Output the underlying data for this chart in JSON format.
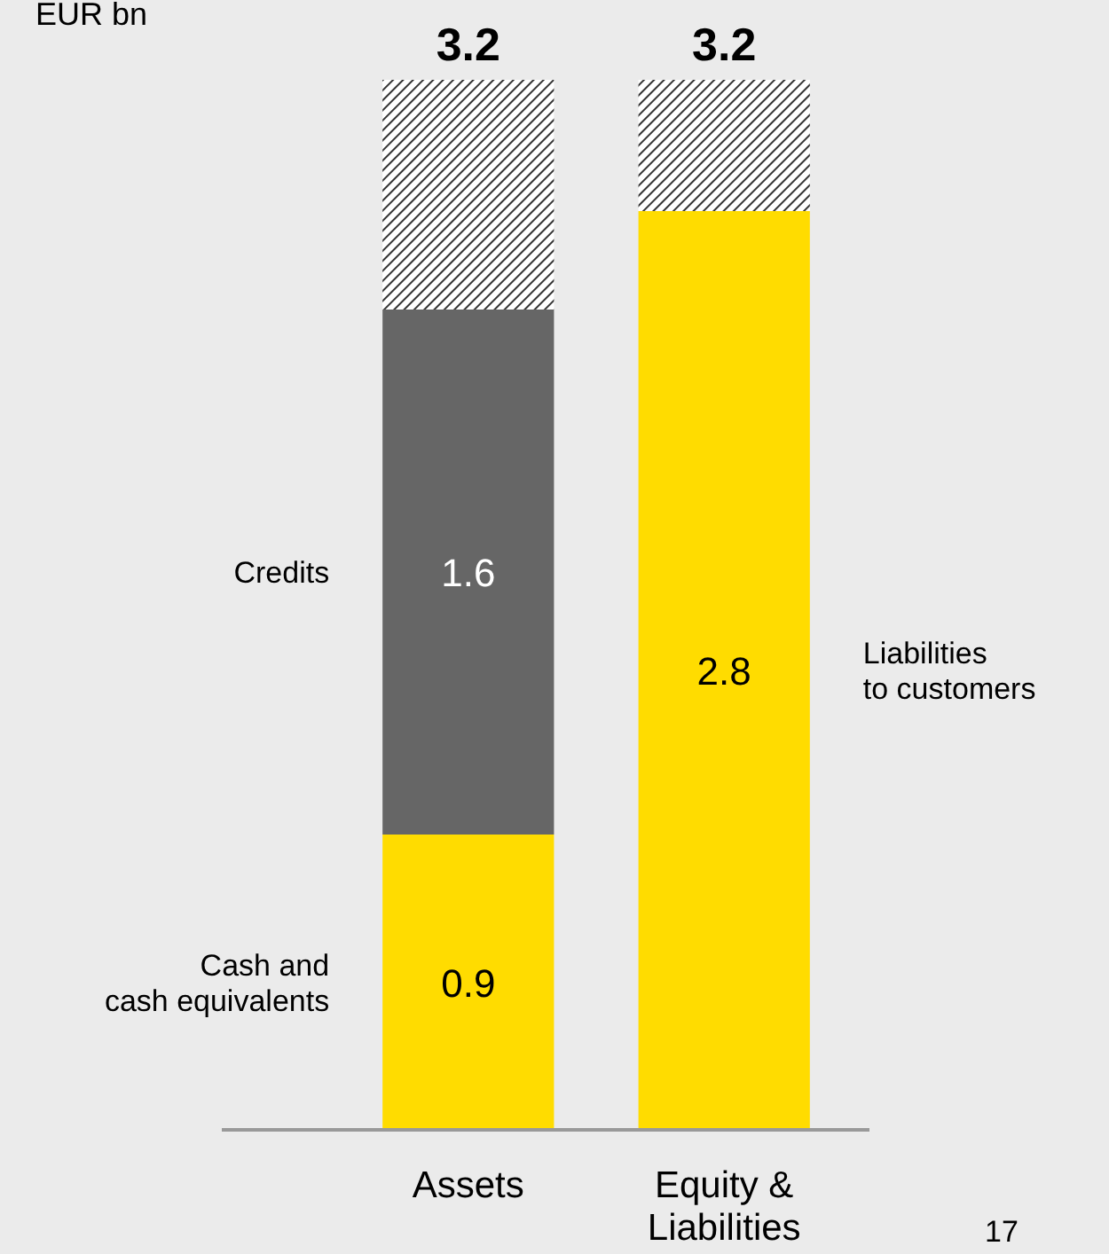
{
  "chart_data": {
    "type": "bar",
    "stacked": true,
    "ylabel": "EUR bn",
    "categories": [
      "Assets",
      "Equity &\nLiabilities"
    ],
    "series": [
      {
        "name": "Cash and\ncash equivalents",
        "color": "#ffdc00",
        "values": [
          0.9,
          null
        ],
        "value_labels": [
          "0.9",
          null
        ]
      },
      {
        "name": "Credits",
        "color": "#666666",
        "values": [
          1.6,
          null
        ],
        "value_labels": [
          "1.6",
          null
        ]
      },
      {
        "name": "Liabilities\nto customers",
        "color": "#ffdc00",
        "values": [
          null,
          2.8
        ],
        "value_labels": [
          null,
          "2.8"
        ]
      },
      {
        "color": "#333333",
        "values": [
          0.7,
          0.4
        ],
        "value_labels": [
          null,
          null
        ]
      }
    ],
    "totals": [
      "3.2",
      "3.2"
    ],
    "annotations": [
      "17"
    ]
  }
}
